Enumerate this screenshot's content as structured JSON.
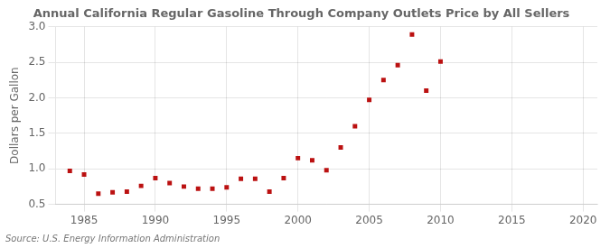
{
  "chart_data": {
    "type": "scatter",
    "title": "Annual California Regular Gasoline Through Company Outlets Price by All Sellers",
    "ylabel": "Dollars per Gallon",
    "annotations": [
      "Source: U.S. Energy Information Administration"
    ],
    "x": [
      1984,
      1985,
      1986,
      1987,
      1988,
      1989,
      1990,
      1991,
      1992,
      1993,
      1994,
      1995,
      1996,
      1997,
      1998,
      1999,
      2000,
      2001,
      2002,
      2003,
      2004,
      2005,
      2006,
      2007,
      2008,
      2009,
      2010
    ],
    "values": [
      0.97,
      0.92,
      0.65,
      0.67,
      0.68,
      0.76,
      0.87,
      0.8,
      0.75,
      0.72,
      0.72,
      0.74,
      0.86,
      0.86,
      0.68,
      0.87,
      1.15,
      1.12,
      0.98,
      1.3,
      1.6,
      1.97,
      2.25,
      2.46,
      2.89,
      2.1,
      2.51
    ],
    "color": "#bb1111",
    "marker": "square",
    "xlim": [
      1983,
      2021
    ],
    "xticks": [
      1985,
      1990,
      1995,
      2000,
      2005,
      2010,
      2015,
      2020
    ],
    "ylim": [
      0.5,
      3.0
    ],
    "yticks": [
      0.5,
      {
        "value": 1.0,
        "label": "1.0"
      },
      1.5,
      {
        "value": 2.0,
        "label": "2.0"
      },
      2.5,
      {
        "value": 3.0,
        "label": "3.0"
      }
    ],
    "grid": true
  }
}
